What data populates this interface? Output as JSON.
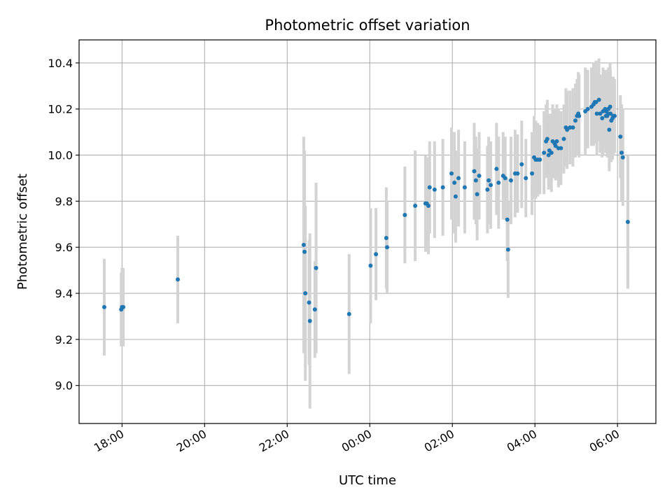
{
  "chart_data": {
    "type": "scatter",
    "title": "Photometric offset variation",
    "xlabel": "UTC time",
    "ylabel": "Photometric offset",
    "grid": true,
    "x_tick_labels": [
      "18:00",
      "20:00",
      "22:00",
      "00:00",
      "02:00",
      "04:00",
      "06:00"
    ],
    "y_tick_labels": [
      "9.0",
      "9.2",
      "9.4",
      "9.6",
      "9.8",
      "10.0",
      "10.2",
      "10.4"
    ],
    "y_ticks": [
      9.0,
      9.2,
      9.4,
      9.6,
      9.8,
      10.0,
      10.2,
      10.4
    ],
    "x_ticks_hours": [
      18,
      20,
      22,
      24,
      26,
      28,
      30
    ],
    "xlim_hours": [
      16.96,
      30.93
    ],
    "ylim": [
      8.835,
      10.5
    ],
    "colors": {
      "point": "#1f77b4",
      "errorbar": "#d3d3d3",
      "grid": "#b0b0b0"
    },
    "series": [
      {
        "x": [
          17.57,
          17.98,
          18.0,
          18.03,
          19.35,
          22.4,
          22.42,
          22.44,
          22.53,
          22.55,
          22.67,
          22.7,
          23.5,
          24.02,
          24.15,
          24.4,
          24.42,
          24.85,
          25.1,
          25.35,
          25.38,
          25.42,
          25.45,
          25.57,
          25.77,
          25.98,
          26.05,
          26.08,
          26.15,
          26.3,
          26.53,
          26.57,
          26.6,
          26.65,
          26.85,
          26.88,
          26.93,
          27.07,
          27.12,
          27.23,
          27.28,
          27.33,
          27.35,
          27.42,
          27.52,
          27.58,
          27.68,
          27.78,
          27.93,
          27.98,
          28.02,
          28.07,
          28.12,
          28.22,
          28.27,
          28.3,
          28.33,
          28.35,
          28.4,
          28.43,
          28.48,
          28.5,
          28.53,
          28.57,
          28.63,
          28.7,
          28.75,
          28.78,
          28.85,
          28.92,
          28.98,
          29.02,
          29.05,
          29.07,
          29.22,
          29.28,
          29.37,
          29.42,
          29.45,
          29.48,
          29.5,
          29.55,
          29.58,
          29.63,
          29.65,
          29.7,
          29.72,
          29.73,
          29.75,
          29.77,
          29.78,
          29.8,
          29.82,
          29.83,
          29.85,
          29.88,
          29.9,
          29.93,
          30.07,
          30.1,
          30.13,
          30.25
        ],
        "y": [
          9.34,
          9.33,
          9.34,
          9.34,
          9.46,
          9.61,
          9.58,
          9.4,
          9.36,
          9.28,
          9.33,
          9.51,
          9.31,
          9.52,
          9.57,
          9.64,
          9.6,
          9.74,
          9.78,
          9.79,
          9.79,
          9.78,
          9.86,
          9.85,
          9.86,
          9.92,
          9.88,
          9.82,
          9.9,
          9.86,
          9.93,
          9.89,
          9.83,
          9.91,
          9.85,
          9.89,
          9.87,
          9.94,
          9.88,
          9.91,
          9.9,
          9.72,
          9.59,
          9.89,
          9.92,
          9.92,
          9.96,
          9.9,
          9.92,
          9.99,
          9.98,
          9.98,
          9.98,
          10.01,
          10.06,
          10.07,
          10.0,
          10.02,
          10.01,
          10.06,
          10.05,
          10.04,
          10.06,
          10.03,
          10.03,
          10.07,
          10.12,
          10.11,
          10.12,
          10.12,
          10.15,
          10.17,
          10.18,
          10.17,
          10.19,
          10.2,
          10.21,
          10.22,
          10.23,
          10.23,
          10.18,
          10.24,
          10.18,
          10.16,
          10.19,
          10.2,
          10.17,
          10.19,
          10.17,
          10.18,
          10.2,
          10.11,
          10.21,
          10.18,
          10.15,
          10.16,
          10.17,
          10.17,
          10.08,
          10.01,
          9.99,
          9.71
        ],
        "err": [
          0.21,
          0.16,
          0.17,
          0.17,
          0.19,
          0.47,
          0.44,
          0.38,
          0.27,
          0.38,
          0.21,
          0.37,
          0.26,
          0.25,
          0.2,
          0.22,
          0.2,
          0.21,
          0.24,
          0.21,
          0.18,
          0.21,
          0.2,
          0.21,
          0.21,
          0.2,
          0.22,
          0.2,
          0.21,
          0.2,
          0.21,
          0.19,
          0.2,
          0.19,
          0.19,
          0.19,
          0.19,
          0.2,
          0.2,
          0.19,
          0.18,
          0.18,
          0.21,
          0.19,
          0.19,
          0.17,
          0.19,
          0.17,
          0.18,
          0.18,
          0.17,
          0.16,
          0.15,
          0.18,
          0.16,
          0.17,
          0.15,
          0.16,
          0.17,
          0.16,
          0.15,
          0.15,
          0.16,
          0.17,
          0.16,
          0.15,
          0.17,
          0.17,
          0.16,
          0.17,
          0.16,
          0.16,
          0.18,
          0.18,
          0.19,
          0.17,
          0.17,
          0.18,
          0.17,
          0.18,
          0.18,
          0.18,
          0.17,
          0.17,
          0.19,
          0.17,
          0.16,
          0.16,
          0.18,
          0.19,
          0.18,
          0.18,
          0.19,
          0.19,
          0.18,
          0.18,
          0.17,
          0.16,
          0.18,
          0.21,
          0.21,
          0.29
        ]
      }
    ]
  }
}
